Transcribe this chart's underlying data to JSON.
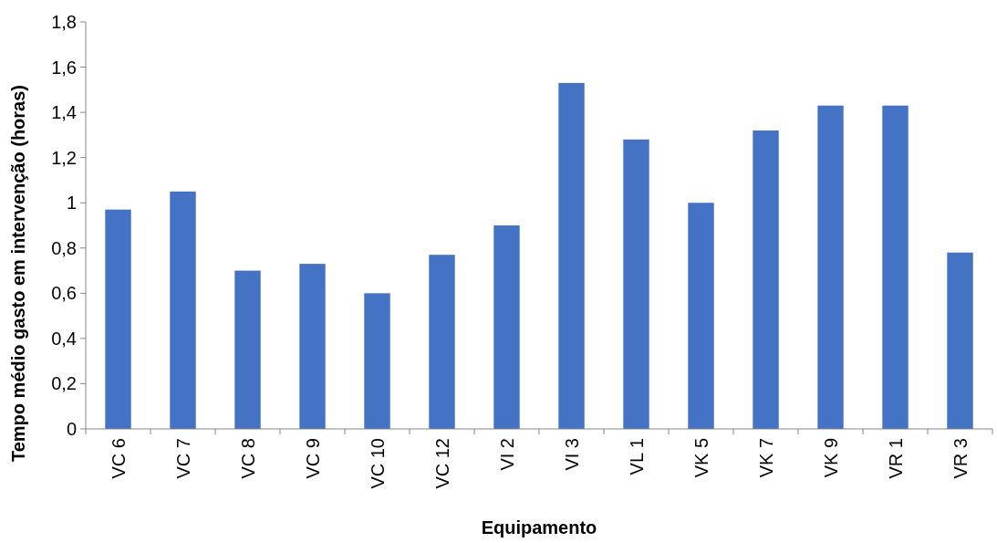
{
  "chart_data": {
    "type": "bar",
    "xlabel": "Equipamento",
    "ylabel": "Tempo médio gasto em intervenção (horas)",
    "categories": [
      "VC 6",
      "VC 7",
      "VC 8",
      "VC 9",
      "VC 10",
      "VC 12",
      "VI 2",
      "VI 3",
      "VL 1",
      "VK 5",
      "VK 7",
      "VK 9",
      "VR 1",
      "VR 3"
    ],
    "values": [
      0.97,
      1.05,
      0.7,
      0.73,
      0.6,
      0.77,
      0.9,
      1.53,
      1.28,
      1.0,
      1.32,
      1.43,
      1.43,
      0.78
    ],
    "color": "#4472c4",
    "ylim": [
      0,
      1.8
    ],
    "yticks": [
      0,
      {
        "value": 0.2,
        "label": "0,2"
      },
      {
        "value": 0.4,
        "label": "0,4"
      },
      {
        "value": 0.6,
        "label": "0,6"
      },
      {
        "value": 0.8,
        "label": "0,8"
      },
      1,
      {
        "value": 1.2,
        "label": "1,2"
      },
      {
        "value": 1.4,
        "label": "1,4"
      },
      {
        "value": 1.6,
        "label": "1,6"
      },
      {
        "value": 1.8,
        "label": "1,8"
      }
    ],
    "grid": false
  }
}
